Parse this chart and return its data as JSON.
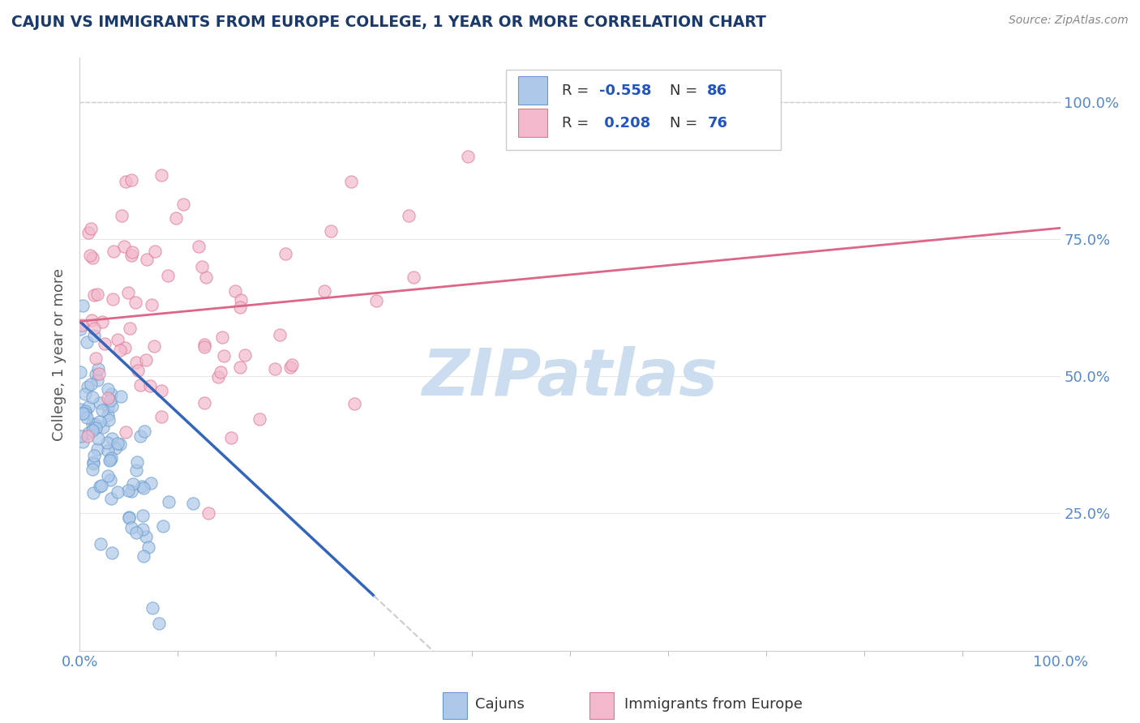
{
  "title": "CAJUN VS IMMIGRANTS FROM EUROPE COLLEGE, 1 YEAR OR MORE CORRELATION CHART",
  "source_text": "Source: ZipAtlas.com",
  "ylabel": "College, 1 year or more",
  "cajun_color": "#adc8e8",
  "europe_color": "#f2b8cc",
  "cajun_edge_color": "#6699cc",
  "europe_edge_color": "#dd7799",
  "cajun_line_color": "#3366bb",
  "europe_line_color": "#dd6688",
  "title_color": "#1a3a6b",
  "source_color": "#888888",
  "axis_label_color": "#555555",
  "tick_color": "#5588cc",
  "grid_color": "#e8e8e8",
  "dashed_line_color": "#cccccc",
  "watermark": "ZIPatlas",
  "watermark_color": "#ccddef",
  "background_color": "#ffffff",
  "cajun_r": -0.558,
  "cajun_n": 86,
  "europe_r": 0.208,
  "europe_n": 76,
  "xlim": [
    0.0,
    1.0
  ],
  "ylim": [
    0.0,
    1.08
  ],
  "yticks": [
    0.25,
    0.5,
    0.75,
    1.0
  ],
  "ytick_labels": [
    "25.0%",
    "50.0%",
    "75.0%",
    "100.0%"
  ],
  "xtick_labels": [
    "0.0%",
    "100.0%"
  ],
  "cajun_trend_x0": 0.0,
  "cajun_trend_y0": 0.6,
  "cajun_trend_x1": 0.3,
  "cajun_trend_y1": 0.1,
  "europe_trend_x0": 0.0,
  "europe_trend_y0": 0.6,
  "europe_trend_x1": 1.0,
  "europe_trend_y1": 0.77
}
